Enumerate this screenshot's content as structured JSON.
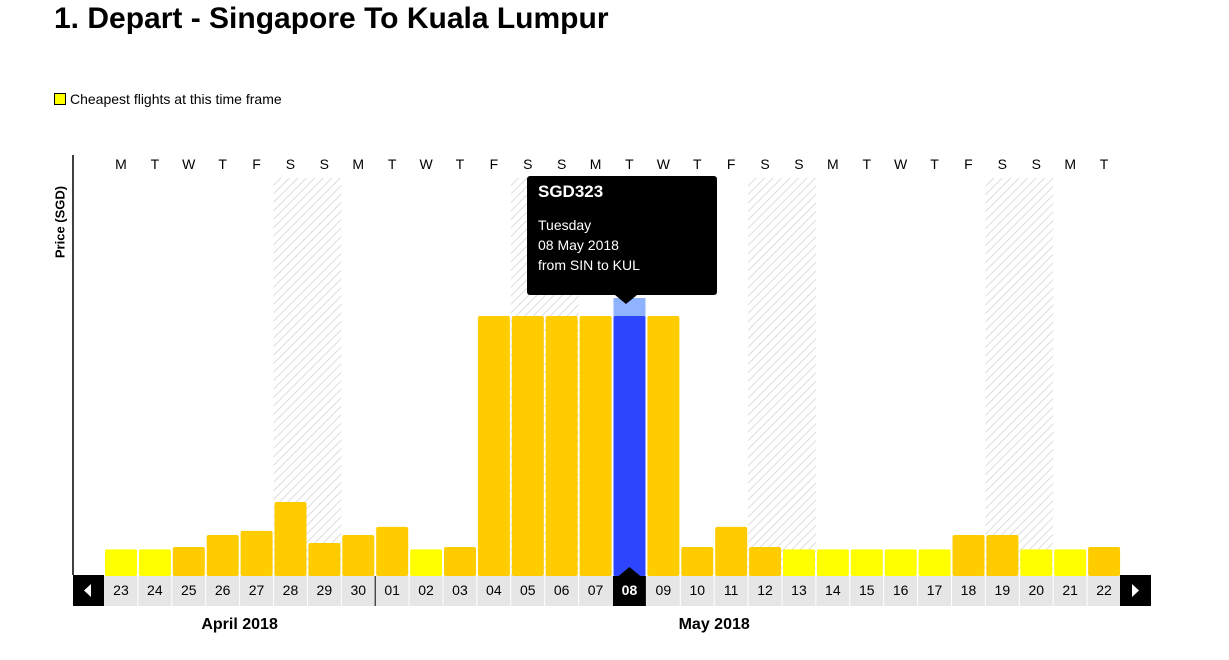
{
  "header": {
    "title": "1. Depart - Singapore To Kuala Lumpur"
  },
  "legend": {
    "label": "Cheapest flights at this time frame",
    "swatch_color": "#ffff00"
  },
  "colors": {
    "regular_bar": "#ffcc00",
    "cheapest_bar": "#ffff00",
    "selected_bar": "#2e45ff",
    "selected_highlight": "#8fb3ff",
    "weekend_hatch": "#dddddd"
  },
  "chart_data": {
    "type": "bar",
    "ylabel": "Price (SGD)",
    "categories": [
      "23",
      "24",
      "25",
      "26",
      "27",
      "28",
      "29",
      "30",
      "01",
      "02",
      "03",
      "04",
      "05",
      "06",
      "07",
      "08",
      "09",
      "10",
      "11",
      "12",
      "13",
      "14",
      "15",
      "16",
      "17",
      "18",
      "19",
      "20",
      "21",
      "22"
    ],
    "weekdays": [
      "M",
      "T",
      "W",
      "T",
      "F",
      "S",
      "S",
      "M",
      "T",
      "W",
      "T",
      "F",
      "S",
      "S",
      "M",
      "T",
      "W",
      "T",
      "F",
      "S",
      "S",
      "M",
      "T",
      "W",
      "T",
      "F",
      "S",
      "S",
      "M",
      "T"
    ],
    "values": [
      33,
      33,
      36,
      51,
      56,
      92,
      41,
      51,
      61,
      33,
      36,
      323,
      323,
      323,
      323,
      323,
      323,
      36,
      61,
      36,
      33,
      33,
      33,
      33,
      33,
      51,
      51,
      33,
      33,
      36
    ],
    "cheapest": [
      true,
      true,
      false,
      false,
      false,
      false,
      false,
      false,
      false,
      true,
      false,
      false,
      false,
      false,
      false,
      false,
      false,
      false,
      false,
      false,
      true,
      true,
      true,
      true,
      true,
      false,
      false,
      true,
      true,
      false
    ],
    "selected_index": 15,
    "months": [
      {
        "label": "April 2018",
        "start_index": 0,
        "end_index": 7
      },
      {
        "label": "May 2018",
        "start_index": 8,
        "end_index": 29
      }
    ],
    "ylim": [
      0,
      370
    ],
    "grid": false,
    "legend_position": "top-left"
  },
  "tooltip": {
    "price": "SGD323",
    "day": "Tuesday",
    "date": "08 May 2018",
    "route": "from SIN to KUL"
  },
  "navigation": {
    "prev_icon": "arrow-left-icon",
    "next_icon": "arrow-right-icon"
  }
}
